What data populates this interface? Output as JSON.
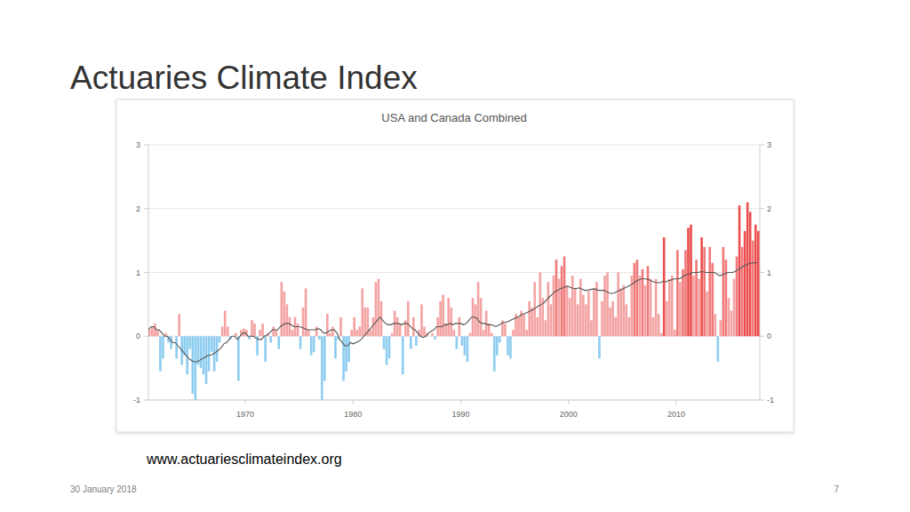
{
  "slide": {
    "title": "Actuaries Climate Index",
    "source": "www.actuariesclimateindex.org",
    "date": "30 January 2018",
    "page": 7
  },
  "chart_data": {
    "type": "bar",
    "title": "USA and Canada Combined",
    "x": [
      1961,
      1961.25,
      1961.5,
      1961.75,
      1962,
      1962.25,
      1962.5,
      1962.75,
      1963,
      1963.25,
      1963.5,
      1963.75,
      1964,
      1964.25,
      1964.5,
      1964.75,
      1965,
      1965.25,
      1965.5,
      1965.75,
      1966,
      1966.25,
      1966.5,
      1966.75,
      1967,
      1967.25,
      1967.5,
      1967.75,
      1968,
      1968.25,
      1968.5,
      1968.75,
      1969,
      1969.25,
      1969.5,
      1969.75,
      1970,
      1970.25,
      1970.5,
      1970.75,
      1971,
      1971.25,
      1971.5,
      1971.75,
      1972,
      1972.25,
      1972.5,
      1972.75,
      1973,
      1973.25,
      1973.5,
      1973.75,
      1974,
      1974.25,
      1974.5,
      1974.75,
      1975,
      1975.25,
      1975.5,
      1975.75,
      1976,
      1976.25,
      1976.5,
      1976.75,
      1977,
      1977.25,
      1977.5,
      1977.75,
      1978,
      1978.25,
      1978.5,
      1978.75,
      1979,
      1979.25,
      1979.5,
      1979.75,
      1980,
      1980.25,
      1980.5,
      1980.75,
      1981,
      1981.25,
      1981.5,
      1981.75,
      1982,
      1982.25,
      1982.5,
      1982.75,
      1983,
      1983.25,
      1983.5,
      1983.75,
      1984,
      1984.25,
      1984.5,
      1984.75,
      1985,
      1985.25,
      1985.5,
      1985.75,
      1986,
      1986.25,
      1986.5,
      1986.75,
      1987,
      1987.25,
      1987.5,
      1987.75,
      1988,
      1988.25,
      1988.5,
      1988.75,
      1989,
      1989.25,
      1989.5,
      1989.75,
      1990,
      1990.25,
      1990.5,
      1990.75,
      1991,
      1991.25,
      1991.5,
      1991.75,
      1992,
      1992.25,
      1992.5,
      1992.75,
      1993,
      1993.25,
      1993.5,
      1993.75,
      1994,
      1994.25,
      1994.5,
      1994.75,
      1995,
      1995.25,
      1995.5,
      1995.75,
      1996,
      1996.25,
      1996.5,
      1996.75,
      1997,
      1997.25,
      1997.5,
      1997.75,
      1998,
      1998.25,
      1998.5,
      1998.75,
      1999,
      1999.25,
      1999.5,
      1999.75,
      2000,
      2000.25,
      2000.5,
      2000.75,
      2001,
      2001.25,
      2001.5,
      2001.75,
      2002,
      2002.25,
      2002.5,
      2002.75,
      2003,
      2003.25,
      2003.5,
      2003.75,
      2004,
      2004.25,
      2004.5,
      2004.75,
      2005,
      2005.25,
      2005.5,
      2005.75,
      2006,
      2006.25,
      2006.5,
      2006.75,
      2007,
      2007.25,
      2007.5,
      2007.75,
      2008,
      2008.25,
      2008.5,
      2008.75,
      2009,
      2009.25,
      2009.5,
      2009.75,
      2010,
      2010.25,
      2010.5,
      2010.75,
      2011,
      2011.25,
      2011.5,
      2011.75,
      2012,
      2012.25,
      2012.5,
      2012.75,
      2013,
      2013.25,
      2013.5,
      2013.75,
      2014,
      2014.25,
      2014.5,
      2014.75,
      2015,
      2015.25,
      2015.5,
      2015.75,
      2016,
      2016.25,
      2016.5,
      2016.75,
      2017,
      2017.25,
      2017.5
    ],
    "series": [
      {
        "type": "bar",
        "color": "#f4a3a3",
        "values": [
          0.1,
          0.15,
          0.2,
          0.1,
          -0.55,
          -0.35,
          0.05,
          -0.1,
          -0.2,
          0.0,
          -0.35,
          0.35,
          -0.45,
          -0.3,
          -0.6,
          -0.2,
          -0.9,
          -1.0,
          -0.45,
          -0.5,
          -0.6,
          -0.75,
          -0.55,
          -0.25,
          -0.55,
          -0.4,
          -0.1,
          0.15,
          0.4,
          0.15,
          -0.05,
          0.0,
          0.05,
          -0.7,
          0.1,
          0.12,
          0.1,
          -0.05,
          0.25,
          0.2,
          -0.3,
          0.1,
          0.2,
          -0.4,
          0.05,
          -0.1,
          0.15,
          0.1,
          -0.2,
          0.85,
          0.7,
          0.5,
          0.3,
          0.1,
          0.3,
          0.2,
          -0.2,
          0.45,
          0.75,
          0.1,
          -0.3,
          -0.25,
          0.15,
          -0.05,
          -1.0,
          -0.7,
          0.35,
          0.05,
          0.15,
          -0.35,
          -0.05,
          0.3,
          -0.7,
          -0.55,
          -0.4,
          0.1,
          0.3,
          0.1,
          0.15,
          0.75,
          0.45,
          0.45,
          0.1,
          0.3,
          0.85,
          0.9,
          0.55,
          -0.2,
          -0.45,
          -0.35,
          0.05,
          0.4,
          0.3,
          0.2,
          -0.6,
          0.25,
          0.55,
          -0.2,
          0.3,
          -0.15,
          0.1,
          0.5,
          0.15,
          0.05,
          0.0,
          0.05,
          -0.05,
          0.3,
          0.55,
          0.65,
          0.2,
          0.6,
          0.45,
          0.1,
          -0.2,
          0.3,
          -0.15,
          -0.3,
          -0.4,
          0.05,
          0.6,
          0.5,
          0.85,
          0.6,
          0.1,
          0.4,
          0.2,
          0.05,
          -0.55,
          -0.3,
          -0.1,
          0.25,
          0.2,
          -0.3,
          -0.35,
          0.1,
          0.35,
          0.3,
          0.4,
          0.35,
          0.1,
          0.55,
          0.45,
          0.85,
          0.3,
          1.0,
          0.6,
          0.25,
          0.85,
          0.5,
          0.95,
          1.2,
          0.9,
          1.1,
          1.25,
          0.8,
          0.6,
          0.95,
          0.75,
          0.5,
          0.9,
          0.65,
          0.5,
          0.7,
          0.25,
          0.75,
          0.85,
          -0.35,
          0.55,
          0.95,
          1.0,
          0.45,
          0.55,
          0.3,
          1.0,
          0.75,
          0.8,
          0.5,
          0.3,
          0.95,
          1.15,
          1.2,
          0.95,
          1.05,
          0.8,
          1.1,
          0.9,
          0.3,
          0.9,
          0.35,
          0.05,
          1.55,
          0.55,
          0.9,
          0.95,
          0.1,
          1.35,
          0.85,
          1.05,
          1.35,
          1.7,
          1.75,
          0.95,
          1.2,
          0.9,
          1.55,
          1.4,
          0.7,
          1.4,
          1.15,
          0.35,
          -0.4,
          0.25,
          1.4,
          1.2,
          0.6,
          0.4,
          0.9,
          1.25,
          2.05,
          1.4,
          1.65,
          2.1,
          1.95,
          1.5,
          1.75,
          1.65
        ]
      },
      {
        "type": "line",
        "color": "#555555",
        "values": [
          0.1,
          0.15,
          0.15,
          0.1,
          0.1,
          0.05,
          0.0,
          0.0,
          -0.05,
          -0.1,
          -0.1,
          -0.15,
          -0.2,
          -0.25,
          -0.3,
          -0.35,
          -0.38,
          -0.4,
          -0.4,
          -0.38,
          -0.35,
          -0.33,
          -0.3,
          -0.3,
          -0.28,
          -0.25,
          -0.22,
          -0.18,
          -0.12,
          -0.1,
          -0.05,
          0.0,
          0.0,
          -0.05,
          0.0,
          0.05,
          0.05,
          0.0,
          0.0,
          0.0,
          -0.03,
          -0.05,
          -0.05,
          0.0,
          0.02,
          0.05,
          0.1,
          0.1,
          0.1,
          0.15,
          0.18,
          0.2,
          0.2,
          0.18,
          0.15,
          0.15,
          0.15,
          0.14,
          0.12,
          0.1,
          0.1,
          0.1,
          0.1,
          0.12,
          0.1,
          0.05,
          0.05,
          0.08,
          0.1,
          0.1,
          0.05,
          -0.05,
          -0.1,
          -0.15,
          -0.15,
          -0.1,
          -0.12,
          -0.1,
          -0.08,
          -0.05,
          0.0,
          0.05,
          0.1,
          0.15,
          0.2,
          0.25,
          0.3,
          0.25,
          0.2,
          0.18,
          0.18,
          0.2,
          0.2,
          0.2,
          0.18,
          0.2,
          0.2,
          0.17,
          0.12,
          0.1,
          0.05,
          0.0,
          -0.02,
          0.0,
          0.05,
          0.08,
          0.1,
          0.15,
          0.15,
          0.15,
          0.18,
          0.18,
          0.2,
          0.18,
          0.2,
          0.2,
          0.2,
          0.18,
          0.2,
          0.25,
          0.3,
          0.3,
          0.28,
          0.22,
          0.2,
          0.2,
          0.18,
          0.18,
          0.17,
          0.15,
          0.17,
          0.2,
          0.22,
          0.22,
          0.24,
          0.26,
          0.28,
          0.3,
          0.32,
          0.35,
          0.36,
          0.38,
          0.4,
          0.42,
          0.45,
          0.48,
          0.5,
          0.53,
          0.58,
          0.62,
          0.66,
          0.7,
          0.72,
          0.75,
          0.76,
          0.78,
          0.78,
          0.76,
          0.75,
          0.75,
          0.76,
          0.74,
          0.72,
          0.72,
          0.73,
          0.74,
          0.74,
          0.72,
          0.72,
          0.72,
          0.7,
          0.68,
          0.67,
          0.68,
          0.7,
          0.72,
          0.74,
          0.76,
          0.78,
          0.8,
          0.83,
          0.86,
          0.88,
          0.9,
          0.9,
          0.9,
          0.88,
          0.86,
          0.85,
          0.84,
          0.84,
          0.86,
          0.85,
          0.87,
          0.88,
          0.9,
          0.9,
          0.9,
          0.92,
          0.95,
          0.97,
          0.98,
          1.0,
          1.0,
          1.0,
          1.01,
          1.01,
          1.0,
          1.0,
          1.0,
          1.0,
          0.98,
          0.95,
          0.96,
          0.98,
          1.0,
          1.0,
          1.0,
          1.02,
          1.05,
          1.07,
          1.1,
          1.12,
          1.14,
          1.15,
          1.15,
          1.15
        ]
      }
    ],
    "xlim": [
      1961,
      2017.75
    ],
    "xticks": [
      1970,
      1980,
      1990,
      2000,
      2010
    ],
    "ylim": [
      -1,
      3
    ],
    "yticks": [
      -1,
      0,
      1,
      2,
      3
    ],
    "y2lim": [
      -1,
      3
    ],
    "y2ticks": [
      -1,
      0,
      1,
      2,
      3
    ],
    "grid": true
  }
}
